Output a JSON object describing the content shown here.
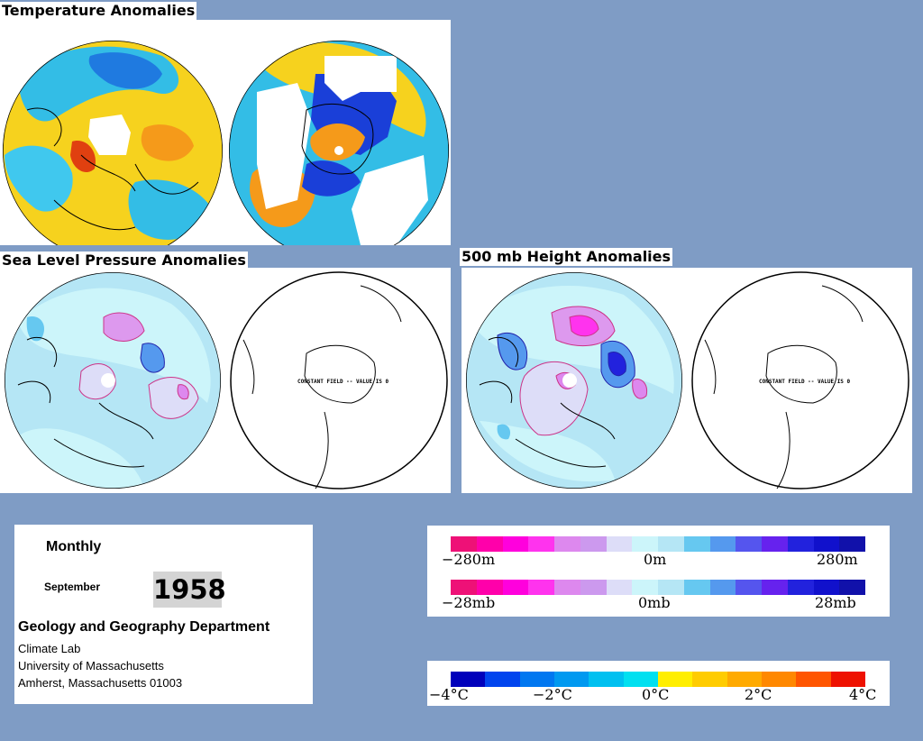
{
  "panels": {
    "temperature": {
      "title": "Temperature Anomalies"
    },
    "slp": {
      "title": "Sea Level Pressure Anomalies",
      "right_map_label": "CONSTANT FIELD -- VALUE IS 0"
    },
    "h500": {
      "title": "500 mb Height Anomalies",
      "right_map_label": "CONSTANT FIELD -- VALUE IS 0"
    }
  },
  "info": {
    "period_type": "Monthly",
    "month": "September",
    "year": "1958",
    "department": "Geology and Geography Department",
    "lines": [
      "Climate Lab",
      "University of Massachusetts",
      "Amherst, Massachusetts 01003"
    ]
  },
  "legends": {
    "height": {
      "labels": [
        "−280m",
        "0m",
        "280m"
      ]
    },
    "pressure": {
      "labels": [
        "−28mb",
        "0mb",
        "28mb"
      ]
    },
    "temperature": {
      "labels": [
        "−4°C",
        "−2°C",
        "0°C",
        "2°C",
        "4°C"
      ]
    }
  },
  "colors": {
    "background": "#7f9cc5",
    "contour_scale": [
      "#ee1177",
      "#ff00aa",
      "#ff00dd",
      "#ff33ee",
      "#dd88ee",
      "#cc99ee",
      "#ddddf8",
      "#ccf5fa",
      "#b5e6f5",
      "#66c8f0",
      "#5599ee",
      "#5555ee",
      "#6622ee",
      "#2222dd",
      "#1111cc",
      "#1111aa"
    ],
    "temperature_scale": [
      "#0000bb",
      "#0044ee",
      "#0077f0",
      "#0099f0",
      "#00c0f0",
      "#00e0f0",
      "#ffee00",
      "#ffcc00",
      "#ffaa00",
      "#ff8800",
      "#ff5500",
      "#ee1100"
    ]
  }
}
